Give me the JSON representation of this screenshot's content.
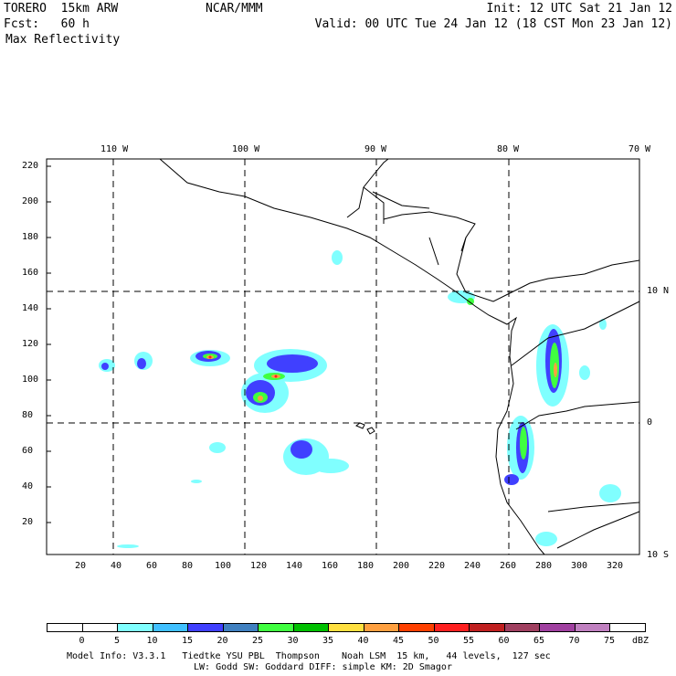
{
  "header": {
    "model": "TORERO  15km ARW",
    "org": "NCAR/MMM",
    "init": "Init: 12 UTC Sat 21 Jan 12",
    "fcst": "Fcst:   60 h",
    "valid": "Valid: 00 UTC Tue 24 Jan 12 (18 CST Mon 23 Jan 12)",
    "field": "Max Reflectivity"
  },
  "map": {
    "lon_labels": [
      "110 W",
      "100 W",
      "90 W",
      "80 W",
      "70 W"
    ],
    "lat_labels": [
      "10 N",
      "0",
      "10 S"
    ],
    "y_ticks": [
      "220",
      "200",
      "180",
      "160",
      "140",
      "120",
      "100",
      "80",
      "60",
      "40",
      "20"
    ],
    "x_ticks": [
      "20",
      "40",
      "60",
      "80",
      "100",
      "120",
      "140",
      "160",
      "180",
      "200",
      "220",
      "240",
      "260",
      "280",
      "300",
      "320"
    ]
  },
  "colorbar": {
    "unit": "dBZ",
    "labels": [
      "0",
      "5",
      "10",
      "15",
      "20",
      "25",
      "30",
      "35",
      "40",
      "45",
      "50",
      "55",
      "60",
      "65",
      "70",
      "75"
    ],
    "colors": [
      "#ffffff",
      "#ffffff",
      "#80ffff",
      "#40c0ff",
      "#4040ff",
      "#4080c0",
      "#40ff40",
      "#00c000",
      "#ffe040",
      "#ffa040",
      "#ff4000",
      "#ff2020",
      "#c02020",
      "#a04060",
      "#a040a0",
      "#c080c0",
      "#ffffff"
    ]
  },
  "footer": {
    "line1": "Model Info: V3.3.1   Tiedtke YSU PBL  Thompson    Noah LSM  15 km,   44 levels,  127 sec",
    "line2": "LW: Godd SW: Goddard DIFF: simple KM: 2D Smagor"
  }
}
